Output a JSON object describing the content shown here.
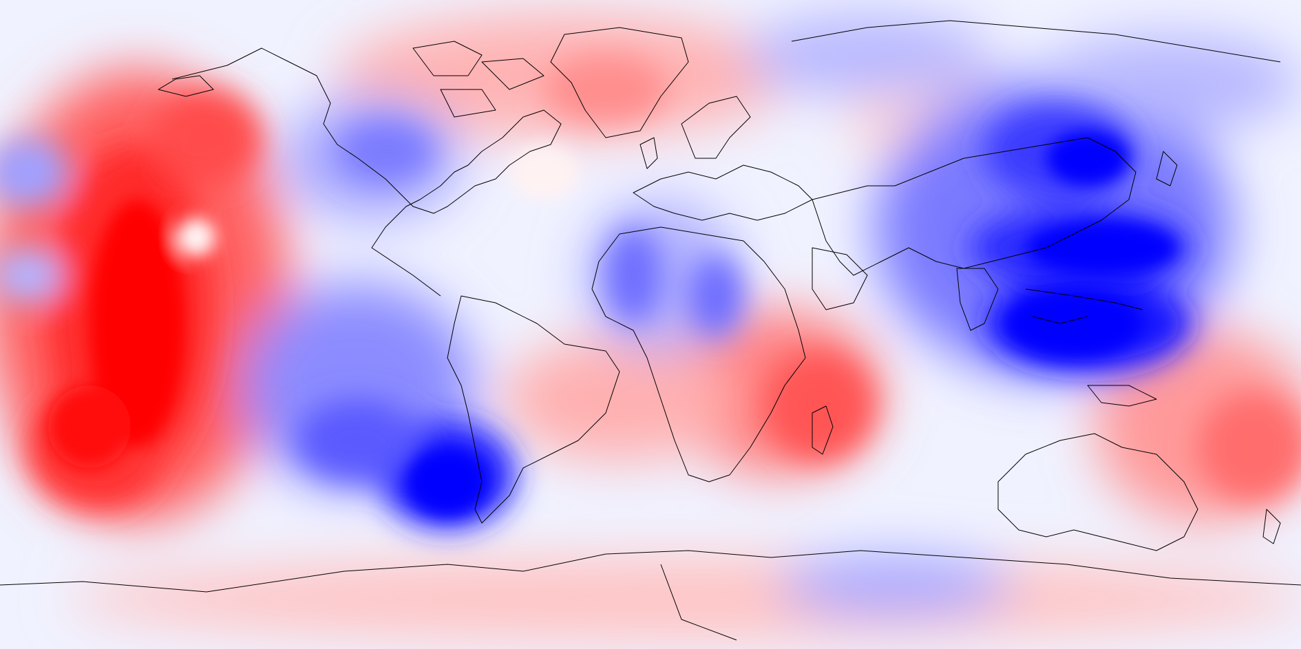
{
  "map": {
    "projection": "equirectangular",
    "colormap": {
      "negative_strong": "#0000ff",
      "negative_mid": "#5a5aff",
      "negative_light": "#c6c6ff",
      "neutral": "#f4f4ff",
      "positive_light": "#ffd0d0",
      "positive_mid": "#ff6a6a",
      "positive_strong": "#ff0000"
    },
    "background": "#f0f2ff",
    "coastline_color": "#000000"
  }
}
